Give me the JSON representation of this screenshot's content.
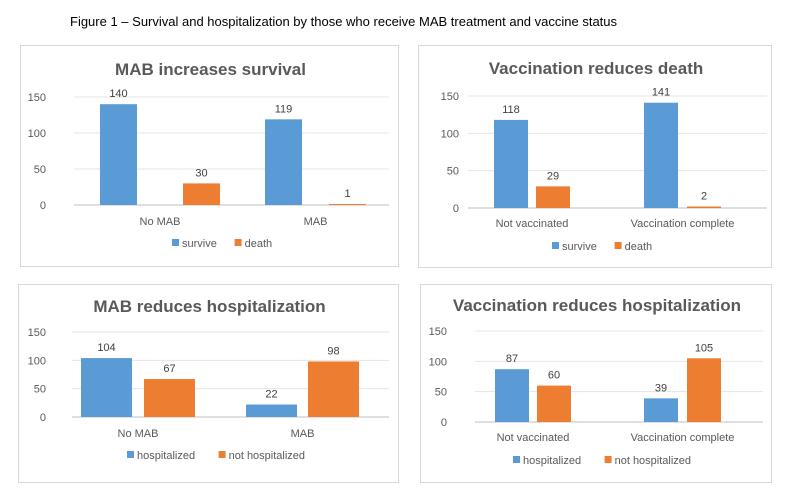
{
  "figure_title": "Figure 1 – Survival and hospitalization by those who receive MAB treatment and vaccine status",
  "colors": {
    "blue": "#5B9BD5",
    "orange": "#ED7D31"
  },
  "chart_data": [
    {
      "type": "bar",
      "title": "MAB increases survival",
      "categories": [
        "No MAB",
        "MAB"
      ],
      "series": [
        {
          "name": "survive",
          "values": [
            140,
            119
          ]
        },
        {
          "name": "death",
          "values": [
            30,
            1
          ]
        }
      ],
      "ylim": [
        0,
        150
      ],
      "yticks": [
        0,
        50,
        100,
        150
      ],
      "grid": true,
      "legend": "bottom"
    },
    {
      "type": "bar",
      "title": "Vaccination reduces death",
      "categories": [
        "Not vaccinated",
        "Vaccination complete"
      ],
      "series": [
        {
          "name": "survive",
          "values": [
            118,
            141
          ]
        },
        {
          "name": "death",
          "values": [
            29,
            2
          ]
        }
      ],
      "ylim": [
        0,
        150
      ],
      "yticks": [
        0,
        50,
        100,
        150
      ],
      "grid": true,
      "legend": "bottom"
    },
    {
      "type": "bar",
      "title": "MAB reduces hospitalization",
      "categories": [
        "No MAB",
        "MAB"
      ],
      "series": [
        {
          "name": "hospitalized",
          "values": [
            104,
            22
          ]
        },
        {
          "name": "not hospitalized",
          "values": [
            67,
            98
          ]
        }
      ],
      "ylim": [
        0,
        150
      ],
      "yticks": [
        0,
        50,
        100,
        150
      ],
      "grid": true,
      "legend": "bottom"
    },
    {
      "type": "bar",
      "title": "Vaccination reduces hospitalization",
      "categories": [
        "Not vaccinated",
        "Vaccination complete"
      ],
      "series": [
        {
          "name": "hospitalized",
          "values": [
            87,
            39
          ]
        },
        {
          "name": "not hospitalized",
          "values": [
            60,
            105
          ]
        }
      ],
      "ylim": [
        0,
        150
      ],
      "yticks": [
        0,
        50,
        100,
        150
      ],
      "grid": true,
      "legend": "bottom"
    }
  ]
}
